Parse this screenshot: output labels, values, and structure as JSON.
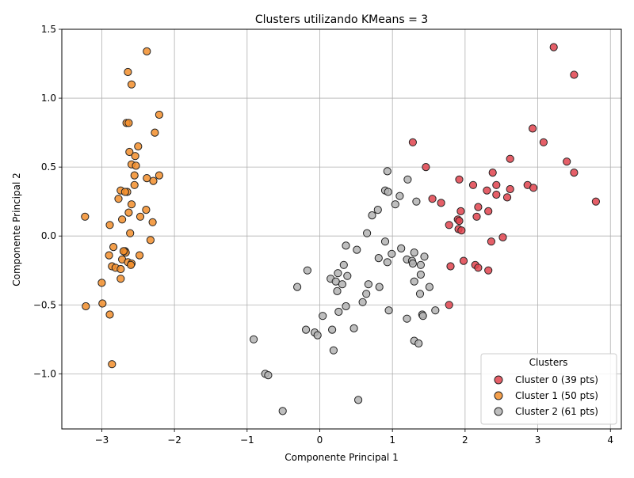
{
  "chart_data": {
    "type": "scatter",
    "title": "Clusters utilizando KMeans = 3",
    "xlabel": "Componente Principal 1",
    "ylabel": "Componente Principal 2",
    "xlim": [
      -3.55,
      4.15
    ],
    "ylim": [
      -1.4,
      1.5
    ],
    "xticks": [
      -3,
      -2,
      -1,
      0,
      1,
      2,
      3,
      4
    ],
    "xtick_labels": [
      "−3",
      "−2",
      "−1",
      "0",
      "1",
      "2",
      "3",
      "4"
    ],
    "yticks": [
      -1.0,
      -0.5,
      0.0,
      0.5,
      1.0,
      1.5
    ],
    "ytick_labels": [
      "−1.0",
      "−0.5",
      "0.0",
      "0.5",
      "1.0",
      "1.5"
    ],
    "grid": true,
    "legend": {
      "title": "Clusters",
      "placement": "lower-right"
    },
    "series": [
      {
        "name": "Cluster 0 (39 pts)",
        "color": "#e0434d",
        "points": [
          [
            3.22,
            1.37
          ],
          [
            3.5,
            1.17
          ],
          [
            2.93,
            0.78
          ],
          [
            3.08,
            0.68
          ],
          [
            1.28,
            0.68
          ],
          [
            2.62,
            0.56
          ],
          [
            3.4,
            0.54
          ],
          [
            1.46,
            0.5
          ],
          [
            2.38,
            0.46
          ],
          [
            3.5,
            0.46
          ],
          [
            1.92,
            0.41
          ],
          [
            2.11,
            0.37
          ],
          [
            2.43,
            0.37
          ],
          [
            2.86,
            0.37
          ],
          [
            2.94,
            0.35
          ],
          [
            2.62,
            0.34
          ],
          [
            2.3,
            0.33
          ],
          [
            2.43,
            0.3
          ],
          [
            2.58,
            0.28
          ],
          [
            1.55,
            0.27
          ],
          [
            1.67,
            0.24
          ],
          [
            3.8,
            0.25
          ],
          [
            2.18,
            0.21
          ],
          [
            1.94,
            0.18
          ],
          [
            2.32,
            0.18
          ],
          [
            2.16,
            0.14
          ],
          [
            1.9,
            0.12
          ],
          [
            1.92,
            0.11
          ],
          [
            1.78,
            0.08
          ],
          [
            1.91,
            0.05
          ],
          [
            1.95,
            0.04
          ],
          [
            2.36,
            -0.04
          ],
          [
            2.52,
            -0.01
          ],
          [
            1.98,
            -0.18
          ],
          [
            1.8,
            -0.22
          ],
          [
            2.14,
            -0.21
          ],
          [
            2.18,
            -0.23
          ],
          [
            2.32,
            -0.25
          ],
          [
            1.78,
            -0.5
          ]
        ]
      },
      {
        "name": "Cluster 1 (50 pts)",
        "color": "#f28e2b",
        "points": [
          [
            -2.38,
            1.34
          ],
          [
            -2.64,
            1.19
          ],
          [
            -2.59,
            1.1
          ],
          [
            -2.21,
            0.88
          ],
          [
            -2.66,
            0.82
          ],
          [
            -2.63,
            0.82
          ],
          [
            -2.27,
            0.75
          ],
          [
            -2.5,
            0.65
          ],
          [
            -2.62,
            0.61
          ],
          [
            -2.54,
            0.58
          ],
          [
            -2.59,
            0.52
          ],
          [
            -2.53,
            0.51
          ],
          [
            -2.55,
            0.44
          ],
          [
            -2.21,
            0.44
          ],
          [
            -2.38,
            0.42
          ],
          [
            -2.29,
            0.4
          ],
          [
            -2.55,
            0.37
          ],
          [
            -2.74,
            0.33
          ],
          [
            -2.65,
            0.32
          ],
          [
            -2.68,
            0.32
          ],
          [
            -2.77,
            0.27
          ],
          [
            -2.59,
            0.23
          ],
          [
            -2.39,
            0.19
          ],
          [
            -2.63,
            0.17
          ],
          [
            -2.47,
            0.14
          ],
          [
            -3.23,
            0.14
          ],
          [
            -2.72,
            0.12
          ],
          [
            -2.3,
            0.1
          ],
          [
            -2.89,
            0.08
          ],
          [
            -2.61,
            0.02
          ],
          [
            -2.33,
            -0.03
          ],
          [
            -2.84,
            -0.08
          ],
          [
            -2.68,
            -0.11
          ],
          [
            -2.67,
            -0.12
          ],
          [
            -2.9,
            -0.14
          ],
          [
            -2.48,
            -0.14
          ],
          [
            -2.72,
            -0.17
          ],
          [
            -2.64,
            -0.19
          ],
          [
            -2.59,
            -0.2
          ],
          [
            -2.86,
            -0.22
          ],
          [
            -2.81,
            -0.23
          ],
          [
            -2.74,
            -0.24
          ],
          [
            -2.74,
            -0.31
          ],
          [
            -3.0,
            -0.34
          ],
          [
            -2.99,
            -0.49
          ],
          [
            -3.22,
            -0.51
          ],
          [
            -2.89,
            -0.57
          ],
          [
            -2.86,
            -0.93
          ],
          [
            -2.6,
            -0.21
          ],
          [
            -2.7,
            -0.11
          ]
        ]
      },
      {
        "name": "Cluster 2 (61 pts)",
        "color": "#b3b3b3",
        "points": [
          [
            0.93,
            0.47
          ],
          [
            1.21,
            0.41
          ],
          [
            0.9,
            0.33
          ],
          [
            0.94,
            0.32
          ],
          [
            1.1,
            0.29
          ],
          [
            1.33,
            0.25
          ],
          [
            1.04,
            0.23
          ],
          [
            0.8,
            0.19
          ],
          [
            0.72,
            0.15
          ],
          [
            0.65,
            0.02
          ],
          [
            0.9,
            -0.04
          ],
          [
            0.36,
            -0.07
          ],
          [
            0.51,
            -0.1
          ],
          [
            1.12,
            -0.09
          ],
          [
            1.3,
            -0.12
          ],
          [
            0.99,
            -0.13
          ],
          [
            1.44,
            -0.15
          ],
          [
            0.81,
            -0.16
          ],
          [
            1.2,
            -0.17
          ],
          [
            1.27,
            -0.18
          ],
          [
            0.93,
            -0.19
          ],
          [
            1.39,
            -0.21
          ],
          [
            0.33,
            -0.21
          ],
          [
            -0.17,
            -0.25
          ],
          [
            0.25,
            -0.27
          ],
          [
            0.38,
            -0.29
          ],
          [
            1.39,
            -0.28
          ],
          [
            0.15,
            -0.31
          ],
          [
            0.22,
            -0.33
          ],
          [
            0.31,
            -0.35
          ],
          [
            1.3,
            -0.33
          ],
          [
            0.67,
            -0.35
          ],
          [
            -0.31,
            -0.37
          ],
          [
            0.82,
            -0.37
          ],
          [
            1.51,
            -0.37
          ],
          [
            0.24,
            -0.4
          ],
          [
            0.64,
            -0.42
          ],
          [
            1.38,
            -0.42
          ],
          [
            0.59,
            -0.48
          ],
          [
            0.36,
            -0.51
          ],
          [
            0.95,
            -0.54
          ],
          [
            0.26,
            -0.55
          ],
          [
            1.59,
            -0.54
          ],
          [
            1.41,
            -0.57
          ],
          [
            0.04,
            -0.58
          ],
          [
            1.42,
            -0.58
          ],
          [
            1.2,
            -0.6
          ],
          [
            -0.19,
            -0.68
          ],
          [
            0.47,
            -0.67
          ],
          [
            0.17,
            -0.68
          ],
          [
            -0.07,
            -0.7
          ],
          [
            -0.03,
            -0.72
          ],
          [
            -0.91,
            -0.75
          ],
          [
            1.3,
            -0.76
          ],
          [
            1.36,
            -0.78
          ],
          [
            0.19,
            -0.83
          ],
          [
            -0.75,
            -1.0
          ],
          [
            -0.71,
            -1.01
          ],
          [
            -0.51,
            -1.27
          ],
          [
            0.53,
            -1.19
          ],
          [
            1.28,
            -0.2
          ]
        ]
      }
    ]
  }
}
